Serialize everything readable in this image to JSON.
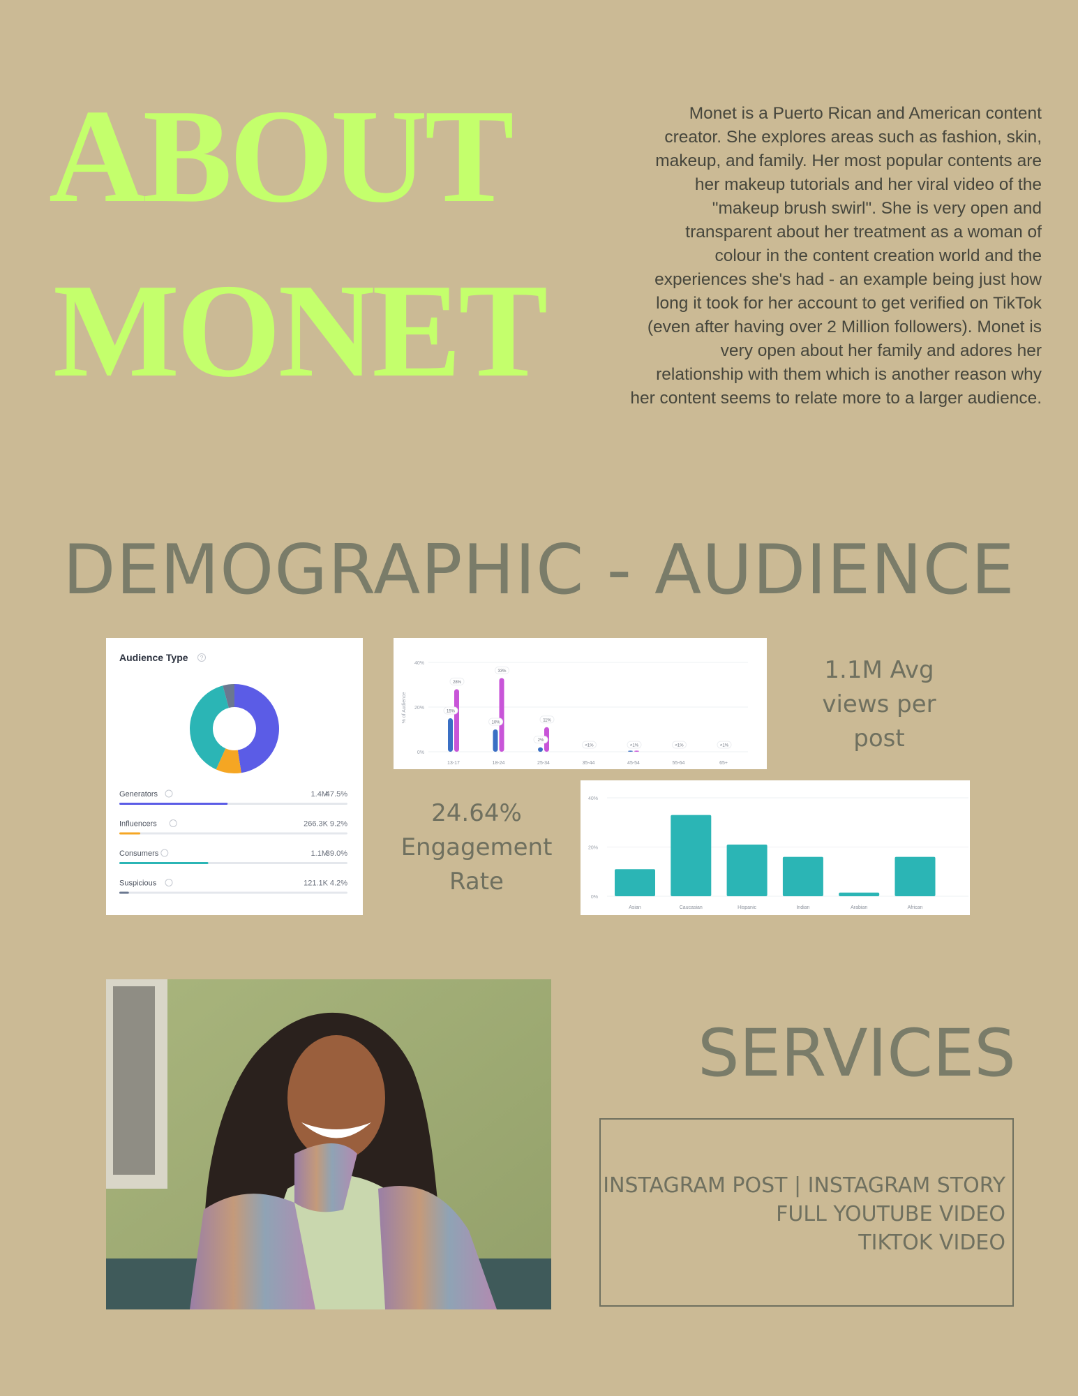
{
  "about": {
    "title_line1": "ABOUT",
    "title_line2": "MONET",
    "title_color": "#c4ff6c",
    "bio_lines": [
      "Monet is a Puerto Rican and American content",
      "creator. She explores areas such as fashion, skin,",
      "makeup, and family. Her most popular contents are",
      "her makeup tutorials and her viral video of the",
      "\"makeup brush swirl\". She is very open and",
      "transparent about her treatment as a woman of",
      "colour in the content creation world and the",
      "experiences she's had - an example being just how",
      "long it took for her account to get verified on TikTok",
      "(even after having over 2 Million followers). Monet is",
      "very open about her family and adores her",
      "relationship with them which is another reason why",
      "her content seems to relate more to a larger audience."
    ]
  },
  "demographic": {
    "title": "DEMOGRAPHIC - AUDIENCE",
    "views_stat": [
      "1.1M Avg",
      "views per",
      "post"
    ],
    "engagement_stat": [
      "24.64%",
      "Engagement",
      "Rate"
    ]
  },
  "chart_data": [
    {
      "type": "pie",
      "title": "Audience Type",
      "help_icon": "question-circle-icon",
      "slices": [
        {
          "name": "Generators",
          "count": "1.4M",
          "percent": 47.5,
          "percent_label": "47.5%",
          "color": "#5b5ce6"
        },
        {
          "name": "Influencers",
          "count": "266.3K",
          "percent": 9.2,
          "percent_label": "9.2%",
          "color": "#f5a623"
        },
        {
          "name": "Consumers",
          "count": "1.1M",
          "percent": 39.0,
          "percent_label": "39.0%",
          "color": "#2bb5b5"
        },
        {
          "name": "Suspicious",
          "count": "121.1K",
          "percent": 4.2,
          "percent_label": "4.2%",
          "color": "#6b7890"
        }
      ]
    },
    {
      "type": "bar",
      "ylabel": "% of Audience",
      "ylim": [
        0,
        40
      ],
      "yticks": [
        "0%",
        "20%",
        "40%"
      ],
      "grid": true,
      "categories": [
        "13-17",
        "18-24",
        "25-34",
        "35-44",
        "45-54",
        "55-64",
        "65+"
      ],
      "series": [
        {
          "color": "#3a6fc4",
          "values": [
            15,
            10,
            2,
            0,
            0.5,
            0,
            0
          ]
        },
        {
          "color": "#c855d8",
          "values": [
            28,
            33,
            11,
            0,
            0.5,
            0,
            0
          ]
        }
      ],
      "data_labels": [
        [
          "15%",
          "28%"
        ],
        [
          "10%",
          "33%"
        ],
        [
          "2%",
          "11%"
        ],
        [
          "<1%"
        ],
        [
          "<1%"
        ],
        [
          "<1%"
        ],
        [
          "<1%"
        ]
      ]
    },
    {
      "type": "bar",
      "ylim": [
        0,
        40
      ],
      "yticks": [
        "0%",
        "20%",
        "40%"
      ],
      "grid": true,
      "categories": [
        "Asian",
        "Caucasian",
        "Hispanic",
        "Indian",
        "Arabian",
        "African"
      ],
      "values": [
        11,
        33,
        21,
        16,
        1.5,
        16
      ],
      "color": "#2bb5b5"
    }
  ],
  "services": {
    "title": "SERVICES",
    "lines": [
      "INSTAGRAM POST | INSTAGRAM STORY",
      "FULL YOUTUBE VIDEO",
      "TIKTOK VIDEO"
    ]
  }
}
